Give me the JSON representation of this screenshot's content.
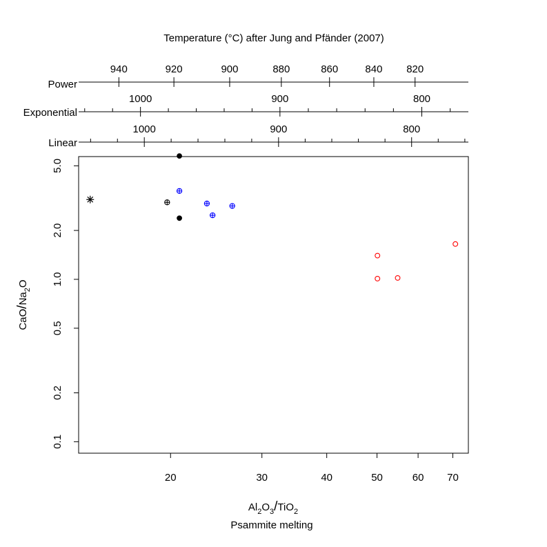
{
  "chart_data": {
    "type": "scatter",
    "title": "Temperature (°C) after Jung and Pfänder (2007)",
    "xlabel": {
      "main": "Al",
      "sub1": "2",
      "mid1": "O",
      "sub2": "3",
      "slash": "/",
      "mid2": "TiO",
      "sub3": "2"
    },
    "subtitle": "Psammite melting",
    "ylabel": {
      "pre": "CaO",
      "slash": "/",
      "mid": "Na",
      "sub": "2",
      "post": "O"
    },
    "x_axis": {
      "scale": "log",
      "range": [
        13.3,
        75
      ],
      "ticks": [
        "20",
        "30",
        "40",
        "50",
        "60",
        "70"
      ]
    },
    "y_axis": {
      "scale": "log",
      "range": [
        0.085,
        5.7
      ],
      "ticks": [
        "0.1",
        "0.2",
        "0.5",
        "1.0",
        "2.0",
        "5.0"
      ]
    },
    "temperature_axes": [
      {
        "name": "Power",
        "ticks": [
          {
            "x": 15.9,
            "label": "940"
          },
          {
            "x": 20.3,
            "label": "920"
          },
          {
            "x": 26.0,
            "label": "900"
          },
          {
            "x": 32.7,
            "label": "880"
          },
          {
            "x": 40.5,
            "label": "860"
          },
          {
            "x": 49.3,
            "label": "840"
          },
          {
            "x": 59.2,
            "label": "820"
          }
        ]
      },
      {
        "name": "Exponential",
        "ticks": [
          {
            "x": 17.5,
            "label": "1000"
          },
          {
            "x": 32.5,
            "label": "900"
          },
          {
            "x": 61.0,
            "label": "800"
          }
        ]
      },
      {
        "name": "Linear",
        "ticks": [
          {
            "x": 17.8,
            "label": "1000"
          },
          {
            "x": 32.3,
            "label": "900"
          },
          {
            "x": 58.3,
            "label": "800"
          }
        ]
      }
    ],
    "series": [
      {
        "marker": "asterisk",
        "color": "#000000",
        "points": [
          [
            14.0,
            3.1
          ]
        ]
      },
      {
        "marker": "circle-plus",
        "color": "#000000",
        "points": [
          [
            19.7,
            2.98
          ]
        ]
      },
      {
        "marker": "filled-circle",
        "color": "#000000",
        "points": [
          [
            20.8,
            5.75
          ],
          [
            20.8,
            2.38
          ]
        ]
      },
      {
        "marker": "circle-plus",
        "color": "#0000ff",
        "points": [
          [
            20.8,
            3.5
          ],
          [
            23.5,
            2.93
          ],
          [
            24.1,
            2.48
          ],
          [
            26.3,
            2.83
          ]
        ]
      },
      {
        "marker": "open-circle",
        "color": "#ff0000",
        "points": [
          [
            50.1,
            1.4
          ],
          [
            50.1,
            1.01
          ],
          [
            54.8,
            1.02
          ],
          [
            70.8,
            1.65
          ]
        ]
      }
    ]
  }
}
